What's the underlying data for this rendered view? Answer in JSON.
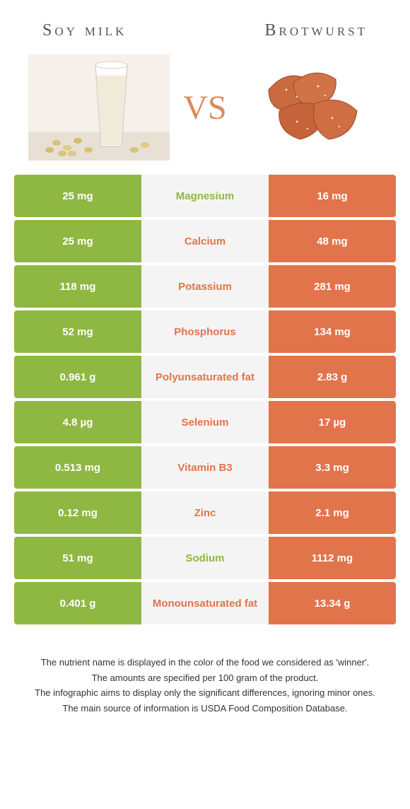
{
  "header": {
    "left_title": "Soy milk",
    "right_title": "Brotwurst",
    "vs_label": "VS"
  },
  "colors": {
    "left_bg": "#8fb843",
    "right_bg": "#e2744b",
    "mid_bg": "#f4f4f4",
    "winner_left_text": "#8fb843",
    "winner_right_text": "#e2744b"
  },
  "rows": [
    {
      "nutrient": "Magnesium",
      "left": "25 mg",
      "right": "16 mg",
      "winner": "left"
    },
    {
      "nutrient": "Calcium",
      "left": "25 mg",
      "right": "48 mg",
      "winner": "right"
    },
    {
      "nutrient": "Potassium",
      "left": "118 mg",
      "right": "281 mg",
      "winner": "right"
    },
    {
      "nutrient": "Phosphorus",
      "left": "52 mg",
      "right": "134 mg",
      "winner": "right"
    },
    {
      "nutrient": "Polyunsaturated fat",
      "left": "0.961 g",
      "right": "2.83 g",
      "winner": "right"
    },
    {
      "nutrient": "Selenium",
      "left": "4.8 µg",
      "right": "17 µg",
      "winner": "right"
    },
    {
      "nutrient": "Vitamin B3",
      "left": "0.513 mg",
      "right": "3.3 mg",
      "winner": "right"
    },
    {
      "nutrient": "Zinc",
      "left": "0.12 mg",
      "right": "2.1 mg",
      "winner": "right"
    },
    {
      "nutrient": "Sodium",
      "left": "51 mg",
      "right": "1112 mg",
      "winner": "left"
    },
    {
      "nutrient": "Monounsaturated fat",
      "left": "0.401 g",
      "right": "13.34 g",
      "winner": "right"
    }
  ],
  "footer": {
    "line1": "The nutrient name is displayed in the color of the food we considered as 'winner'.",
    "line2": "The amounts are specified per 100 gram of the product.",
    "line3": "The infographic aims to display only the significant differences, ignoring minor ones.",
    "line4": "The main source of information is USDA Food Composition Database."
  }
}
